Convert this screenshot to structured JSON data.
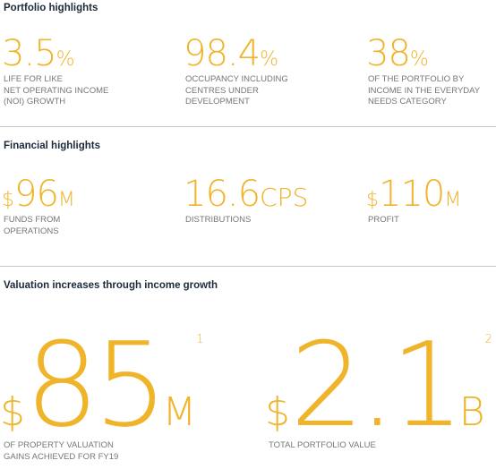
{
  "portfolio": {
    "heading": "Portfolio highlights",
    "stats": [
      {
        "value": "3.5",
        "unit": "%",
        "label": "LIFE FOR LIKE\nNET OPERATING INCOME\n(NOI) GROWTH"
      },
      {
        "value": "98.4",
        "unit": "%",
        "label": "OCCUPANCY INCLUDING\nCENTRES UNDER\nDEVELOPMENT"
      },
      {
        "value": "38",
        "unit": "%",
        "label": "OF THE PORTFOLIO BY\nINCOME IN THE EVERYDAY\nNEEDS CATEGORY"
      }
    ]
  },
  "financial": {
    "heading": "Financial highlights",
    "stats": [
      {
        "prefix": "$",
        "value": "96",
        "unit": "M",
        "label": "FUNDS FROM\nOPERATIONS"
      },
      {
        "prefix": "",
        "value": "16.6",
        "unit": "CPS",
        "label": "DISTRIBUTIONS"
      },
      {
        "prefix": "$",
        "value": "110",
        "unit": "M",
        "label": "PROFIT"
      }
    ]
  },
  "valuation": {
    "heading": "Valuation increases through income growth",
    "stats": [
      {
        "prefix": "$",
        "value": "85",
        "unit": "M",
        "note": "1",
        "label": "OF PROPERTY VALUATION\nGAINS ACHIEVED FOR FY19"
      },
      {
        "prefix": "$",
        "value": "2.1",
        "unit": "B",
        "note": "2",
        "label": "TOTAL PORTFOLIO VALUE"
      }
    ]
  },
  "colors": {
    "accent": "#f0b42a",
    "heading": "#1b2a3a",
    "label": "#767676",
    "rule": "#c9c9c9"
  }
}
